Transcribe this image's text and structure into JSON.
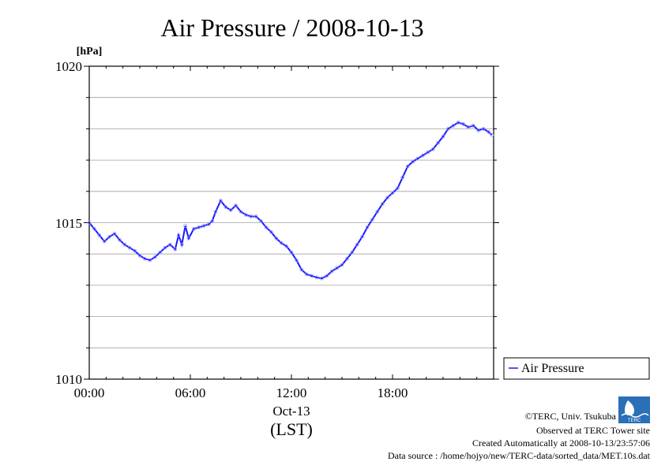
{
  "title": "Air Pressure / 2008-10-13",
  "colors": {
    "series": "#1a1aff",
    "marker": "#9999ff",
    "grid": "#a0a0a0",
    "axis": "#000000"
  },
  "chart_data": {
    "type": "line",
    "title": "Air Pressure / 2008-10-13",
    "ylabel_unit": "[hPa]",
    "xlabel": "(LST)",
    "x_date_label": "Oct-13",
    "xlim_hours": [
      0,
      24
    ],
    "ylim": [
      1010,
      1020
    ],
    "x_ticks": [
      "00:00",
      "06:00",
      "12:00",
      "18:00"
    ],
    "y_ticks": [
      "1010",
      "1015",
      "1020"
    ],
    "grid": true,
    "legend_position": "right",
    "series": [
      {
        "name": "Air Pressure",
        "x": [
          0.0,
          0.3,
          0.6,
          0.9,
          1.2,
          1.5,
          1.8,
          2.1,
          2.4,
          2.7,
          3.0,
          3.3,
          3.6,
          3.9,
          4.2,
          4.5,
          4.8,
          5.1,
          5.3,
          5.5,
          5.7,
          5.9,
          6.2,
          6.5,
          6.8,
          7.1,
          7.3,
          7.5,
          7.8,
          8.1,
          8.4,
          8.7,
          9.0,
          9.3,
          9.6,
          9.9,
          10.2,
          10.5,
          10.8,
          11.1,
          11.4,
          11.7,
          12.0,
          12.3,
          12.6,
          12.9,
          13.2,
          13.5,
          13.8,
          14.1,
          14.4,
          14.7,
          15.0,
          15.3,
          15.6,
          15.9,
          16.2,
          16.5,
          16.8,
          17.1,
          17.4,
          17.7,
          18.0,
          18.3,
          18.6,
          18.9,
          19.2,
          19.5,
          19.8,
          20.1,
          20.4,
          20.7,
          21.0,
          21.3,
          21.6,
          21.9,
          22.2,
          22.5,
          22.8,
          23.1,
          23.4,
          23.7,
          23.9
        ],
        "y": [
          1015.0,
          1014.8,
          1014.6,
          1014.4,
          1014.55,
          1014.65,
          1014.45,
          1014.3,
          1014.2,
          1014.1,
          1013.95,
          1013.85,
          1013.8,
          1013.9,
          1014.05,
          1014.2,
          1014.3,
          1014.15,
          1014.6,
          1014.3,
          1014.9,
          1014.5,
          1014.8,
          1014.85,
          1014.9,
          1014.95,
          1015.05,
          1015.35,
          1015.7,
          1015.5,
          1015.4,
          1015.55,
          1015.35,
          1015.25,
          1015.2,
          1015.2,
          1015.05,
          1014.85,
          1014.7,
          1014.5,
          1014.35,
          1014.25,
          1014.05,
          1013.8,
          1013.5,
          1013.35,
          1013.3,
          1013.25,
          1013.22,
          1013.3,
          1013.45,
          1013.55,
          1013.65,
          1013.85,
          1014.05,
          1014.3,
          1014.55,
          1014.85,
          1015.1,
          1015.35,
          1015.6,
          1015.8,
          1015.95,
          1016.1,
          1016.45,
          1016.8,
          1016.95,
          1017.05,
          1017.15,
          1017.25,
          1017.35,
          1017.55,
          1017.75,
          1018.0,
          1018.1,
          1018.2,
          1018.15,
          1018.05,
          1018.1,
          1017.95,
          1018.0,
          1017.9,
          1017.8
        ]
      }
    ]
  },
  "credits": {
    "copyright": "©TERC, Univ. Tsukuba",
    "observed": "Observed at TERC Tower site",
    "created": "Created Automatically at 2008-10-13/23:57:06",
    "source": "Data source : /home/hojyo/new/TERC-data/sorted_data/MET.10s.dat",
    "logo_text": "TERC"
  }
}
